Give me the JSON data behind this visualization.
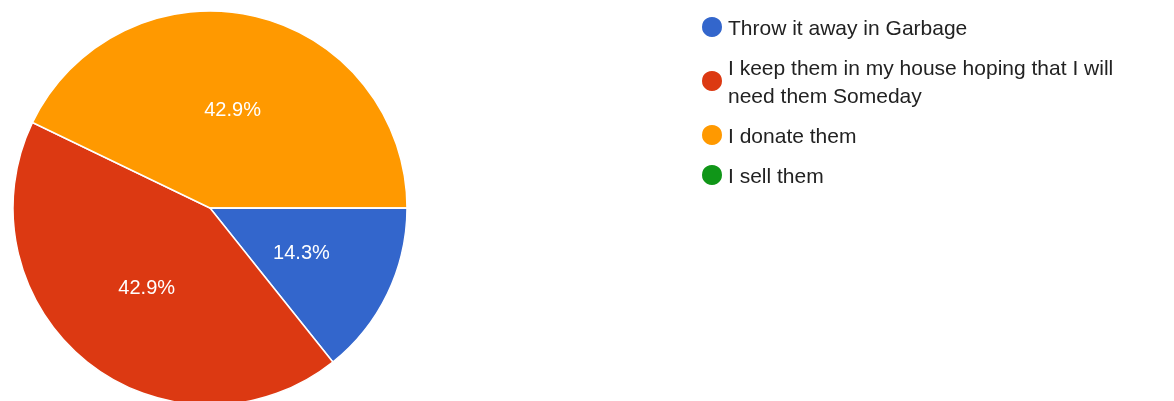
{
  "chart_data": {
    "type": "pie",
    "categories": [
      "Throw it away in Garbage",
      "I keep them in my house hoping that I will need them Someday",
      "I donate them",
      "I sell them"
    ],
    "values": [
      14.3,
      42.9,
      42.9,
      0
    ],
    "colors": [
      "#3366cc",
      "#dc3912",
      "#ff9900",
      "#109618"
    ],
    "value_labels": [
      "14.3%",
      "42.9%",
      "42.9%",
      null
    ],
    "legend": "right"
  }
}
